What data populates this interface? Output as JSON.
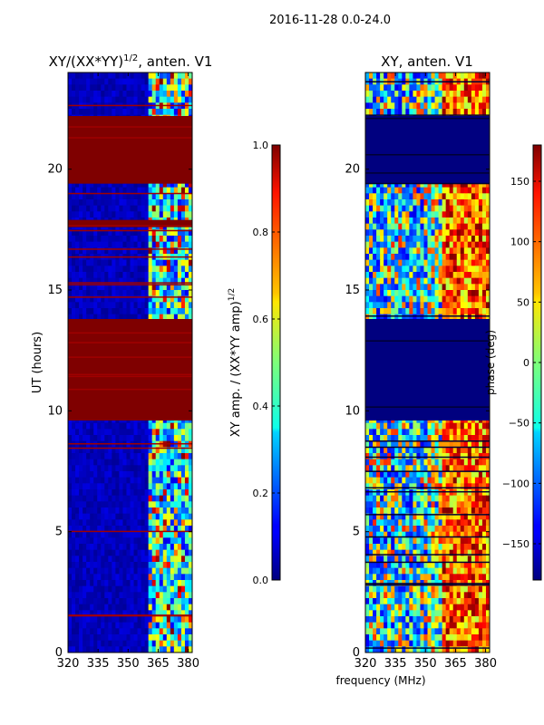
{
  "figure": {
    "suptitle": "2016-11-28 0.0-24.0"
  },
  "chart_data": [
    {
      "type": "heatmap",
      "title": "XY/(XX*YY)",
      "title_superscript": "1/2",
      "title_suffix": ", anten. V1",
      "ylabel": "UT (hours)",
      "xlabel": "",
      "xlim": [
        320,
        382
      ],
      "ylim": [
        0,
        24
      ],
      "xticks": [
        320,
        335,
        350,
        365,
        380
      ],
      "yticks": [
        0,
        5,
        10,
        15,
        20
      ],
      "masked_bands": [
        [
          9.6,
          13.8
        ],
        [
          19.4,
          22.2
        ],
        [
          17.6,
          17.9
        ]
      ],
      "colorbar": {
        "label": "XY amp. / (XX*YY amp)",
        "label_superscript": "1/2",
        "range": [
          0.0,
          1.0
        ],
        "ticks": [
          "0.0",
          "0.2",
          "0.4",
          "0.6",
          "0.8",
          "1.0"
        ]
      }
    },
    {
      "type": "heatmap",
      "title": "XY, anten. V1",
      "ylabel": "",
      "xlabel": "frequency (MHz)",
      "xlim": [
        320,
        382
      ],
      "ylim": [
        0,
        24
      ],
      "xticks": [
        320,
        335,
        350,
        365,
        380
      ],
      "yticks": [
        0,
        5,
        10,
        15,
        20
      ],
      "masked_bands": [
        [
          9.6,
          13.8
        ],
        [
          19.4,
          22.2
        ]
      ],
      "colorbar": {
        "label": "phase (deg)",
        "range": [
          -180,
          180
        ],
        "ticks": [
          "−150",
          "−100",
          "−50",
          "0",
          "50",
          "100",
          "150"
        ]
      }
    }
  ]
}
